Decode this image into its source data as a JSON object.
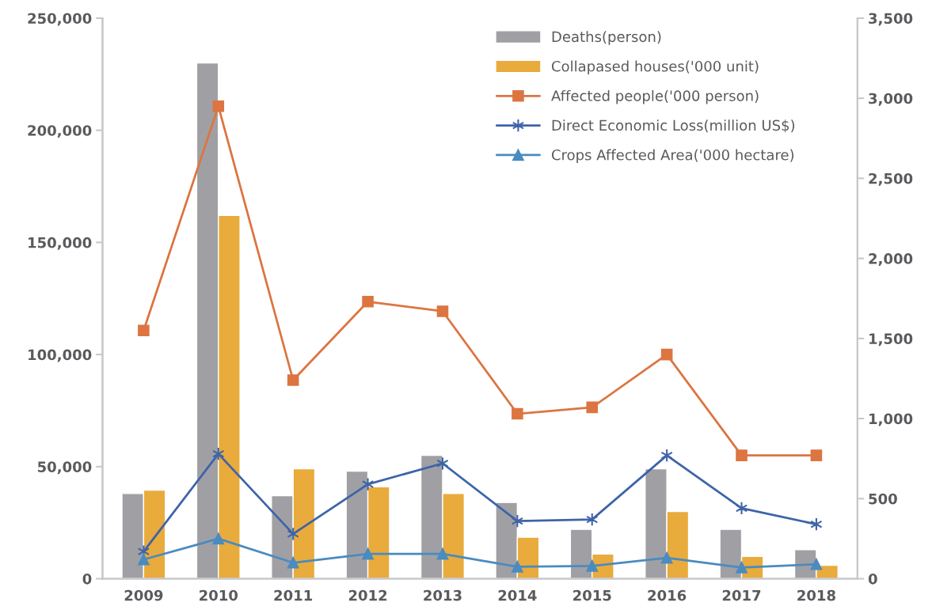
{
  "chart_data": {
    "type": "bar",
    "categories": [
      "2009",
      "2010",
      "2011",
      "2012",
      "2013",
      "2014",
      "2015",
      "2016",
      "2017",
      "2018"
    ],
    "series": [
      {
        "name": "Deaths(person)",
        "color": "#a0a0a4",
        "values": [
          38000,
          230000,
          37000,
          48000,
          55000,
          34000,
          22000,
          49000,
          22000,
          13000
        ]
      },
      {
        "name": "Collapased houses('000 unit)",
        "color": "#e8ab3c",
        "values": [
          39500,
          162000,
          49000,
          41000,
          38000,
          18500,
          11000,
          30000,
          10000,
          6000
        ]
      },
      {
        "name": "Affected people('000 person)",
        "type": "line",
        "axis": "y2",
        "marker": "square",
        "color": "#dc7541",
        "values": [
          1550,
          2950,
          1240,
          1730,
          1670,
          1030,
          1070,
          1400,
          770,
          770
        ]
      },
      {
        "name": "Direct Economic Loss(million US$)",
        "type": "line",
        "axis": "y2",
        "marker": "cross",
        "color": "#3e64a8",
        "values": [
          170,
          780,
          280,
          590,
          720,
          360,
          370,
          770,
          440,
          340
        ]
      },
      {
        "name": "Crops Affected Area('000 hectare)",
        "type": "line",
        "axis": "y2",
        "marker": "triangle",
        "color": "#4a8bc0",
        "values": [
          120,
          250,
          100,
          155,
          155,
          75,
          80,
          130,
          70,
          90
        ]
      }
    ],
    "ylim": [
      0,
      250000
    ],
    "yticks": [
      {
        "value": 0,
        "label": "0"
      },
      {
        "value": 50000,
        "label": "50,000"
      },
      {
        "value": 100000,
        "label": "100,000"
      },
      {
        "value": 150000,
        "label": "150,000"
      },
      {
        "value": 200000,
        "label": "200,000"
      },
      {
        "value": 250000,
        "label": "250,000"
      }
    ],
    "y2lim": [
      0,
      3500
    ],
    "y2ticks": [
      {
        "value": 0,
        "label": "0"
      },
      {
        "value": 500,
        "label": "500"
      },
      {
        "value": 1000,
        "label": "1,000"
      },
      {
        "value": 1500,
        "label": "1,500"
      },
      {
        "value": 2000,
        "label": "2,000"
      },
      {
        "value": 2500,
        "label": "2,500"
      },
      {
        "value": 3000,
        "label": "3,000"
      },
      {
        "value": 3500,
        "label": "3,500"
      }
    ],
    "grid": false,
    "legend": "top right"
  }
}
